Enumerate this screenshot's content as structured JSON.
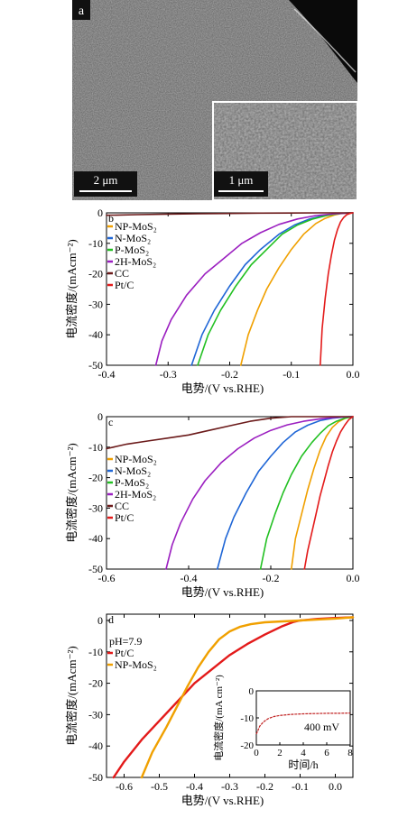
{
  "sem": {
    "panel_label": "a",
    "main_scale": "2 μm",
    "inset_scale": "1 μm"
  },
  "chart_data": [
    {
      "type": "line",
      "panel_label": "b",
      "xlabel": "电势/(V vs.RHE)",
      "ylabel": "电流密度/(mAcm⁻²)",
      "xlim": [
        -0.4,
        0.0
      ],
      "ylim": [
        -50,
        0
      ],
      "xticks": [
        "-0.4",
        "-0.3",
        "-0.2",
        "-0.1",
        "0.0"
      ],
      "yticks": [
        "0",
        "-10",
        "-20",
        "-30",
        "-40",
        "-50"
      ],
      "series": [
        {
          "name": "NP-MoS₂",
          "color": "#f0a000",
          "x": [
            -0.182,
            -0.17,
            -0.155,
            -0.14,
            -0.12,
            -0.1,
            -0.08,
            -0.06,
            -0.045,
            -0.03,
            -0.02,
            -0.01,
            0.0
          ],
          "y": [
            -50,
            -40,
            -32,
            -25,
            -18,
            -12,
            -7,
            -3.5,
            -1.8,
            -0.7,
            -0.3,
            -0.1,
            0
          ]
        },
        {
          "name": "N-MoS₂",
          "color": "#1f66d6",
          "x": [
            -0.262,
            -0.245,
            -0.225,
            -0.2,
            -0.175,
            -0.15,
            -0.12,
            -0.095,
            -0.07,
            -0.05,
            -0.03,
            -0.015,
            0.0
          ],
          "y": [
            -50,
            -40,
            -32,
            -24,
            -17,
            -12,
            -7,
            -4,
            -2,
            -1,
            -0.4,
            -0.1,
            0
          ]
        },
        {
          "name": "P-MoS₂",
          "color": "#22c022",
          "x": [
            -0.252,
            -0.235,
            -0.215,
            -0.19,
            -0.165,
            -0.14,
            -0.115,
            -0.09,
            -0.065,
            -0.045,
            -0.03,
            -0.015,
            0.0
          ],
          "y": [
            -50,
            -40,
            -32,
            -24,
            -17,
            -12,
            -7,
            -4,
            -2,
            -1,
            -0.4,
            -0.1,
            0
          ]
        },
        {
          "name": "2H-MoS₂",
          "color": "#9b1fc0",
          "x": [
            -0.32,
            -0.31,
            -0.295,
            -0.27,
            -0.24,
            -0.21,
            -0.18,
            -0.15,
            -0.12,
            -0.09,
            -0.06,
            -0.03,
            0.0
          ],
          "y": [
            -50,
            -42,
            -35,
            -27,
            -20,
            -15,
            -10,
            -6.5,
            -3.8,
            -2,
            -0.9,
            -0.3,
            0
          ]
        },
        {
          "name": "CC",
          "color": "#6b1a1a",
          "x": [
            -0.4,
            -0.35,
            -0.3,
            -0.25,
            -0.2,
            -0.15,
            -0.1,
            -0.05,
            0.0
          ],
          "y": [
            -0.8,
            -0.6,
            -0.4,
            -0.3,
            -0.2,
            -0.1,
            -0.05,
            0,
            0
          ]
        },
        {
          "name": "Pt/C",
          "color": "#e31a1a",
          "x": [
            -0.053,
            -0.05,
            -0.045,
            -0.04,
            -0.035,
            -0.03,
            -0.025,
            -0.02,
            -0.015,
            -0.01,
            -0.005,
            0.0
          ],
          "y": [
            -50,
            -38,
            -28,
            -20,
            -14,
            -9,
            -5.5,
            -3,
            -1.5,
            -0.6,
            -0.2,
            0
          ]
        }
      ]
    },
    {
      "type": "line",
      "panel_label": "c",
      "xlabel": "电势/(V vs.RHE)",
      "ylabel": "电流密度/(mAcm⁻²)",
      "xlim": [
        -0.6,
        0.0
      ],
      "ylim": [
        -50,
        0
      ],
      "xticks": [
        "-0.6",
        "-0.4",
        "-0.2",
        "0.0"
      ],
      "yticks": [
        "0",
        "-10",
        "-20",
        "-30",
        "-40",
        "-50"
      ],
      "series": [
        {
          "name": "NP-MoS₂",
          "color": "#f0a000",
          "x": [
            -0.15,
            -0.14,
            -0.125,
            -0.11,
            -0.095,
            -0.08,
            -0.065,
            -0.05,
            -0.035,
            -0.02,
            -0.01,
            0.0
          ],
          "y": [
            -50,
            -40,
            -32,
            -24,
            -17,
            -11,
            -6.5,
            -3.5,
            -1.7,
            -0.6,
            -0.2,
            0
          ]
        },
        {
          "name": "N-MoS₂",
          "color": "#1f66d6",
          "x": [
            -0.33,
            -0.31,
            -0.29,
            -0.26,
            -0.23,
            -0.2,
            -0.17,
            -0.14,
            -0.11,
            -0.08,
            -0.05,
            -0.02,
            0.0
          ],
          "y": [
            -50,
            -40,
            -33,
            -25,
            -18,
            -13,
            -8.5,
            -5,
            -2.8,
            -1.3,
            -0.5,
            -0.1,
            0
          ]
        },
        {
          "name": "P-MoS₂",
          "color": "#22c022",
          "x": [
            -0.225,
            -0.21,
            -0.19,
            -0.17,
            -0.15,
            -0.125,
            -0.1,
            -0.08,
            -0.06,
            -0.04,
            -0.02,
            0.0
          ],
          "y": [
            -50,
            -40,
            -32,
            -25,
            -19,
            -13,
            -8.5,
            -5.5,
            -3,
            -1.5,
            -0.5,
            0
          ]
        },
        {
          "name": "2H-MoS₂",
          "color": "#9b1fc0",
          "x": [
            -0.455,
            -0.44,
            -0.42,
            -0.39,
            -0.36,
            -0.32,
            -0.28,
            -0.24,
            -0.2,
            -0.16,
            -0.12,
            -0.08,
            -0.04,
            0.0
          ],
          "y": [
            -50,
            -42,
            -35,
            -27,
            -21,
            -15,
            -10.5,
            -7,
            -4.5,
            -2.7,
            -1.5,
            -0.7,
            -0.2,
            0
          ]
        },
        {
          "name": "CC",
          "color": "#6b1a1a",
          "x": [
            -0.6,
            -0.55,
            -0.5,
            -0.45,
            -0.4,
            -0.35,
            -0.3,
            -0.25,
            -0.2,
            -0.15,
            -0.1,
            -0.05,
            0.0
          ],
          "y": [
            -10.5,
            -9,
            -8,
            -7,
            -6,
            -4.5,
            -3,
            -1.5,
            -0.5,
            0,
            0,
            0,
            0
          ]
        },
        {
          "name": "Pt/C",
          "color": "#e31a1a",
          "x": [
            -0.118,
            -0.11,
            -0.1,
            -0.09,
            -0.08,
            -0.07,
            -0.06,
            -0.05,
            -0.04,
            -0.03,
            -0.02,
            -0.01,
            0.0
          ],
          "y": [
            -50,
            -44,
            -38,
            -32,
            -26,
            -21,
            -16,
            -11.5,
            -8,
            -5,
            -2.8,
            -1,
            0
          ]
        }
      ]
    },
    {
      "type": "line",
      "panel_label": "d",
      "xlabel": "电势/(V vs.RHE)",
      "ylabel": "电流密度/(mAcm⁻²)",
      "annotation": "pH=7.9",
      "xlim": [
        -0.65,
        0.05
      ],
      "ylim": [
        -50,
        2
      ],
      "xticks": [
        "-0.6",
        "-0.5",
        "-0.4",
        "-0.3",
        "-0.2",
        "-0.1",
        "0.0"
      ],
      "yticks": [
        "0",
        "-10",
        "-20",
        "-30",
        "-40",
        "-50"
      ],
      "series": [
        {
          "name": "Pt/C",
          "color": "#e31a1a",
          "x": [
            -0.63,
            -0.6,
            -0.55,
            -0.5,
            -0.45,
            -0.4,
            -0.35,
            -0.3,
            -0.25,
            -0.2,
            -0.15,
            -0.12,
            -0.1,
            -0.08,
            -0.05,
            0.0,
            0.05
          ],
          "y": [
            -50,
            -45,
            -38,
            -32,
            -26,
            -20,
            -15.5,
            -11,
            -7.5,
            -4.5,
            -1.8,
            -0.5,
            0,
            0.2,
            0.5,
            0.8,
            1
          ]
        },
        {
          "name": "NP-MoS₂",
          "color": "#f0a000",
          "x": [
            -0.55,
            -0.52,
            -0.48,
            -0.45,
            -0.42,
            -0.39,
            -0.36,
            -0.33,
            -0.3,
            -0.27,
            -0.24,
            -0.2,
            -0.15,
            -0.1,
            -0.05,
            0.0,
            0.05
          ],
          "y": [
            -50,
            -42,
            -34,
            -27.5,
            -21,
            -15,
            -10,
            -6,
            -3.5,
            -2,
            -1.2,
            -0.6,
            -0.3,
            0,
            0.3,
            0.6,
            1
          ]
        }
      ],
      "inset": {
        "xlabel": "时间/h",
        "ylabel": "电流密度/(mA cm⁻²)",
        "annotation": "400 mV",
        "xlim": [
          0,
          8
        ],
        "ylim": [
          -20,
          0
        ],
        "xticks": [
          "0",
          "2",
          "4",
          "6",
          "8"
        ],
        "yticks": [
          "0",
          "-10",
          "-20"
        ],
        "series": [
          {
            "name": "",
            "color": "#c02020",
            "x": [
              0,
              0.3,
              0.6,
              1,
              1.5,
              2,
              3,
              4,
              5,
              6,
              7,
              8
            ],
            "y": [
              -16,
              -13,
              -11.5,
              -10.3,
              -9.5,
              -9.1,
              -8.7,
              -8.5,
              -8.4,
              -8.3,
              -8.3,
              -8.2
            ]
          }
        ]
      }
    }
  ]
}
